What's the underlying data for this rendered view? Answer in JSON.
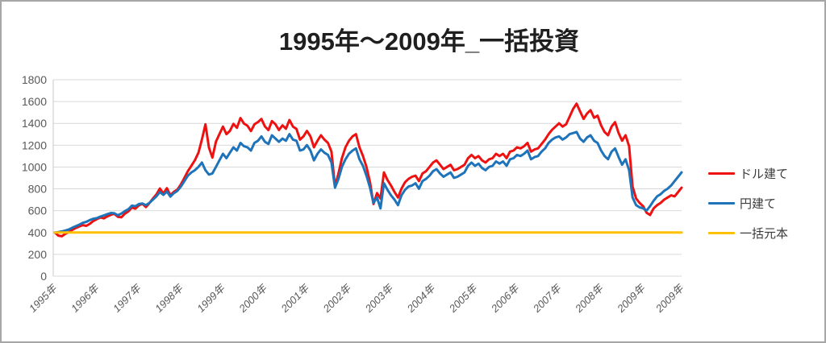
{
  "title": "1995年〜2009年_一括投資",
  "chart_data": {
    "type": "line",
    "title": "1995年〜2009年_一括投資",
    "xlabel": "",
    "ylabel": "",
    "ylim": [
      0,
      1800
    ],
    "y_ticks": [
      0,
      200,
      400,
      600,
      800,
      1000,
      1200,
      1400,
      1600,
      1800
    ],
    "grid": "horizontal",
    "grid_color": "#d9d9d9",
    "axis_label_color": "#595959",
    "legend_position": "right",
    "x_unit": "monthly from 1995-01 to 2009-12",
    "x_tick_labels": [
      "1995年",
      "1996年",
      "1997年",
      "1998年",
      "1999年",
      "2000年",
      "2001年",
      "2002年",
      "2003年",
      "2004年",
      "2005年",
      "2006年",
      "2007年",
      "2008年",
      "2009年",
      "2009年"
    ],
    "x_tick_month_indices": [
      0,
      12,
      24,
      36,
      48,
      60,
      72,
      84,
      96,
      108,
      120,
      132,
      144,
      156,
      168,
      179
    ],
    "series": [
      {
        "name": "ドル建て",
        "color": "#ee1111",
        "values": [
          400,
          372,
          366,
          388,
          404,
          425,
          442,
          456,
          468,
          461,
          480,
          505,
          522,
          538,
          530,
          548,
          563,
          571,
          544,
          539,
          573,
          594,
          629,
          618,
          649,
          663,
          633,
          669,
          711,
          749,
          803,
          757,
          806,
          741,
          773,
          793,
          841,
          901,
          962,
          1012,
          1062,
          1131,
          1252,
          1391,
          1179,
          1086,
          1232,
          1301,
          1371,
          1301,
          1331,
          1396,
          1359,
          1449,
          1399,
          1379,
          1329,
          1391,
          1412,
          1441,
          1372,
          1338,
          1421,
          1391,
          1339,
          1382,
          1351,
          1431,
          1371,
          1349,
          1251,
          1281,
          1331,
          1281,
          1181,
          1241,
          1291,
          1251,
          1221,
          1141,
          821,
          941,
          1081,
          1181,
          1241,
          1281,
          1301,
          1181,
          1101,
          1001,
          861,
          661,
          761,
          711,
          951,
          881,
          831,
          771,
          721,
          801,
          861,
          891,
          911,
          921,
          871,
          941,
          961,
          1001,
          1041,
          1061,
          1021,
          981,
          1001,
          1021,
          971,
          981,
          1001,
          1021,
          1081,
          1111,
          1081,
          1101,
          1061,
          1041,
          1071,
          1081,
          1121,
          1101,
          1121,
          1081,
          1141,
          1151,
          1181,
          1171,
          1191,
          1221,
          1141,
          1161,
          1171,
          1211,
          1251,
          1301,
          1341,
          1371,
          1401,
          1371,
          1391,
          1461,
          1531,
          1581,
          1511,
          1441,
          1491,
          1521,
          1451,
          1471,
          1381,
          1321,
          1291,
          1371,
          1411,
          1311,
          1241,
          1291,
          1191,
          821,
          711,
          671,
          641,
          581,
          561,
          621,
          651,
          671,
          701,
          721,
          741,
          731,
          771,
          811
        ]
      },
      {
        "name": "円建て",
        "color": "#1e73b9",
        "values": [
          400,
          404,
          410,
          418,
          428,
          444,
          458,
          472,
          489,
          498,
          514,
          526,
          532,
          546,
          556,
          569,
          579,
          576,
          558,
          574,
          596,
          614,
          646,
          641,
          661,
          666,
          651,
          671,
          701,
          731,
          771,
          744,
          776,
          729,
          761,
          781,
          821,
          871,
          921,
          951,
          971,
          1001,
          1041,
          971,
          931,
          941,
          1001,
          1061,
          1121,
          1081,
          1131,
          1181,
          1151,
          1221,
          1191,
          1181,
          1151,
          1221,
          1241,
          1281,
          1231,
          1211,
          1291,
          1261,
          1231,
          1261,
          1241,
          1301,
          1251,
          1241,
          1151,
          1161,
          1201,
          1151,
          1061,
          1121,
          1161,
          1131,
          1111,
          1041,
          811,
          891,
          1001,
          1071,
          1121,
          1151,
          1171,
          1071,
          1011,
          921,
          811,
          671,
          721,
          621,
          851,
          791,
          741,
          701,
          651,
          741,
          791,
          821,
          831,
          851,
          801,
          871,
          891,
          921,
          961,
          981,
          941,
          911,
          931,
          951,
          901,
          911,
          931,
          951,
          1011,
          1041,
          1011,
          1031,
          991,
          971,
          1001,
          1011,
          1051,
          1031,
          1051,
          1011,
          1071,
          1081,
          1111,
          1101,
          1121,
          1151,
          1071,
          1091,
          1101,
          1141,
          1171,
          1221,
          1251,
          1271,
          1281,
          1251,
          1271,
          1301,
          1311,
          1321,
          1261,
          1231,
          1271,
          1291,
          1241,
          1221,
          1151,
          1101,
          1071,
          1141,
          1171,
          1091,
          1021,
          1071,
          971,
          721,
          651,
          631,
          621,
          601,
          641,
          691,
          731,
          751,
          781,
          801,
          831,
          871,
          911,
          951
        ]
      },
      {
        "name": "一括元本",
        "color": "#ffc000",
        "values": [
          400,
          400
        ]
      }
    ]
  }
}
